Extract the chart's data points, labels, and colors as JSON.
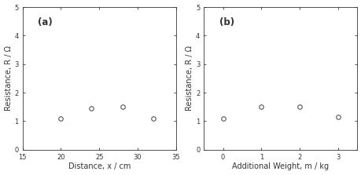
{
  "plot_a": {
    "x": [
      20,
      24,
      28,
      32
    ],
    "y": [
      1.1,
      1.45,
      1.5,
      1.1
    ],
    "xlabel": "Distance, x / cm",
    "ylabel": "Resistance, R / Ω",
    "label": "(a)",
    "xlim": [
      15,
      35
    ],
    "xticks": [
      15,
      20,
      25,
      30,
      35
    ],
    "ylim": [
      0,
      5
    ],
    "yticks": [
      0,
      1,
      2,
      3,
      4,
      5
    ]
  },
  "plot_b": {
    "x": [
      0,
      1,
      2,
      3
    ],
    "y": [
      1.1,
      1.5,
      1.5,
      1.15
    ],
    "xlabel": "Additional Weight, m / kg",
    "ylabel": "Resistance, R / Ω",
    "label": "(b)",
    "xlim": [
      -0.5,
      3.5
    ],
    "xticks": [
      0,
      1,
      2,
      3
    ],
    "ylim": [
      0,
      5
    ],
    "yticks": [
      0,
      1,
      2,
      3,
      4,
      5
    ]
  },
  "marker": "o",
  "marker_size": 4,
  "marker_facecolor": "white",
  "marker_edgecolor": "#555555",
  "marker_linewidth": 0.8,
  "label_fontsize": 7,
  "tick_fontsize": 6,
  "panel_label_fontsize": 8.5,
  "background_color": "#ffffff",
  "spine_color": "#333333",
  "tick_color": "#333333"
}
